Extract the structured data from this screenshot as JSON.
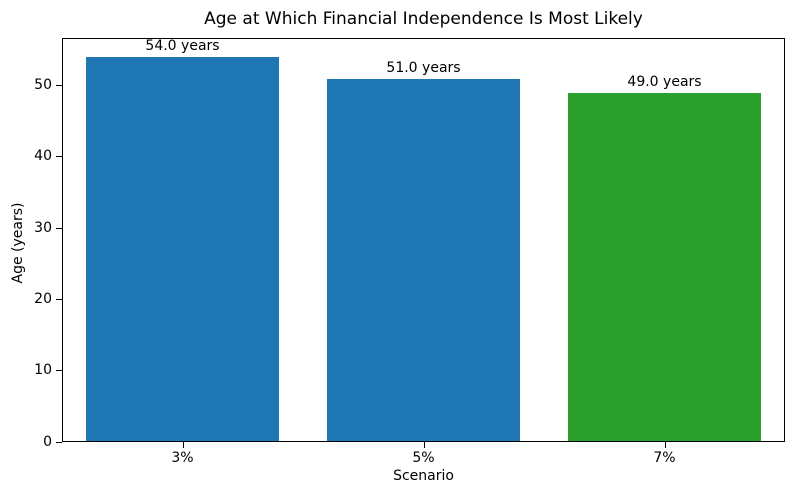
{
  "chart_data": {
    "type": "bar",
    "title": "Age at Which Financial Independence Is Most Likely",
    "xlabel": "Scenario",
    "ylabel": "Age (years)",
    "categories": [
      "3%",
      "5%",
      "7%"
    ],
    "values": [
      54.0,
      51.0,
      49.0
    ],
    "bar_labels": [
      "54.0 years",
      "51.0 years",
      "49.0 years"
    ],
    "bar_colors": [
      "#1f77b4",
      "#1f77b4",
      "#2ca02c"
    ],
    "yticks": [
      0,
      10,
      20,
      30,
      40,
      50
    ],
    "ylim": [
      0,
      56.7
    ],
    "bar_width_fraction": 0.8,
    "grid": false,
    "legend_position": "none",
    "axis_color": "#000000",
    "background_color": "#ffffff"
  }
}
